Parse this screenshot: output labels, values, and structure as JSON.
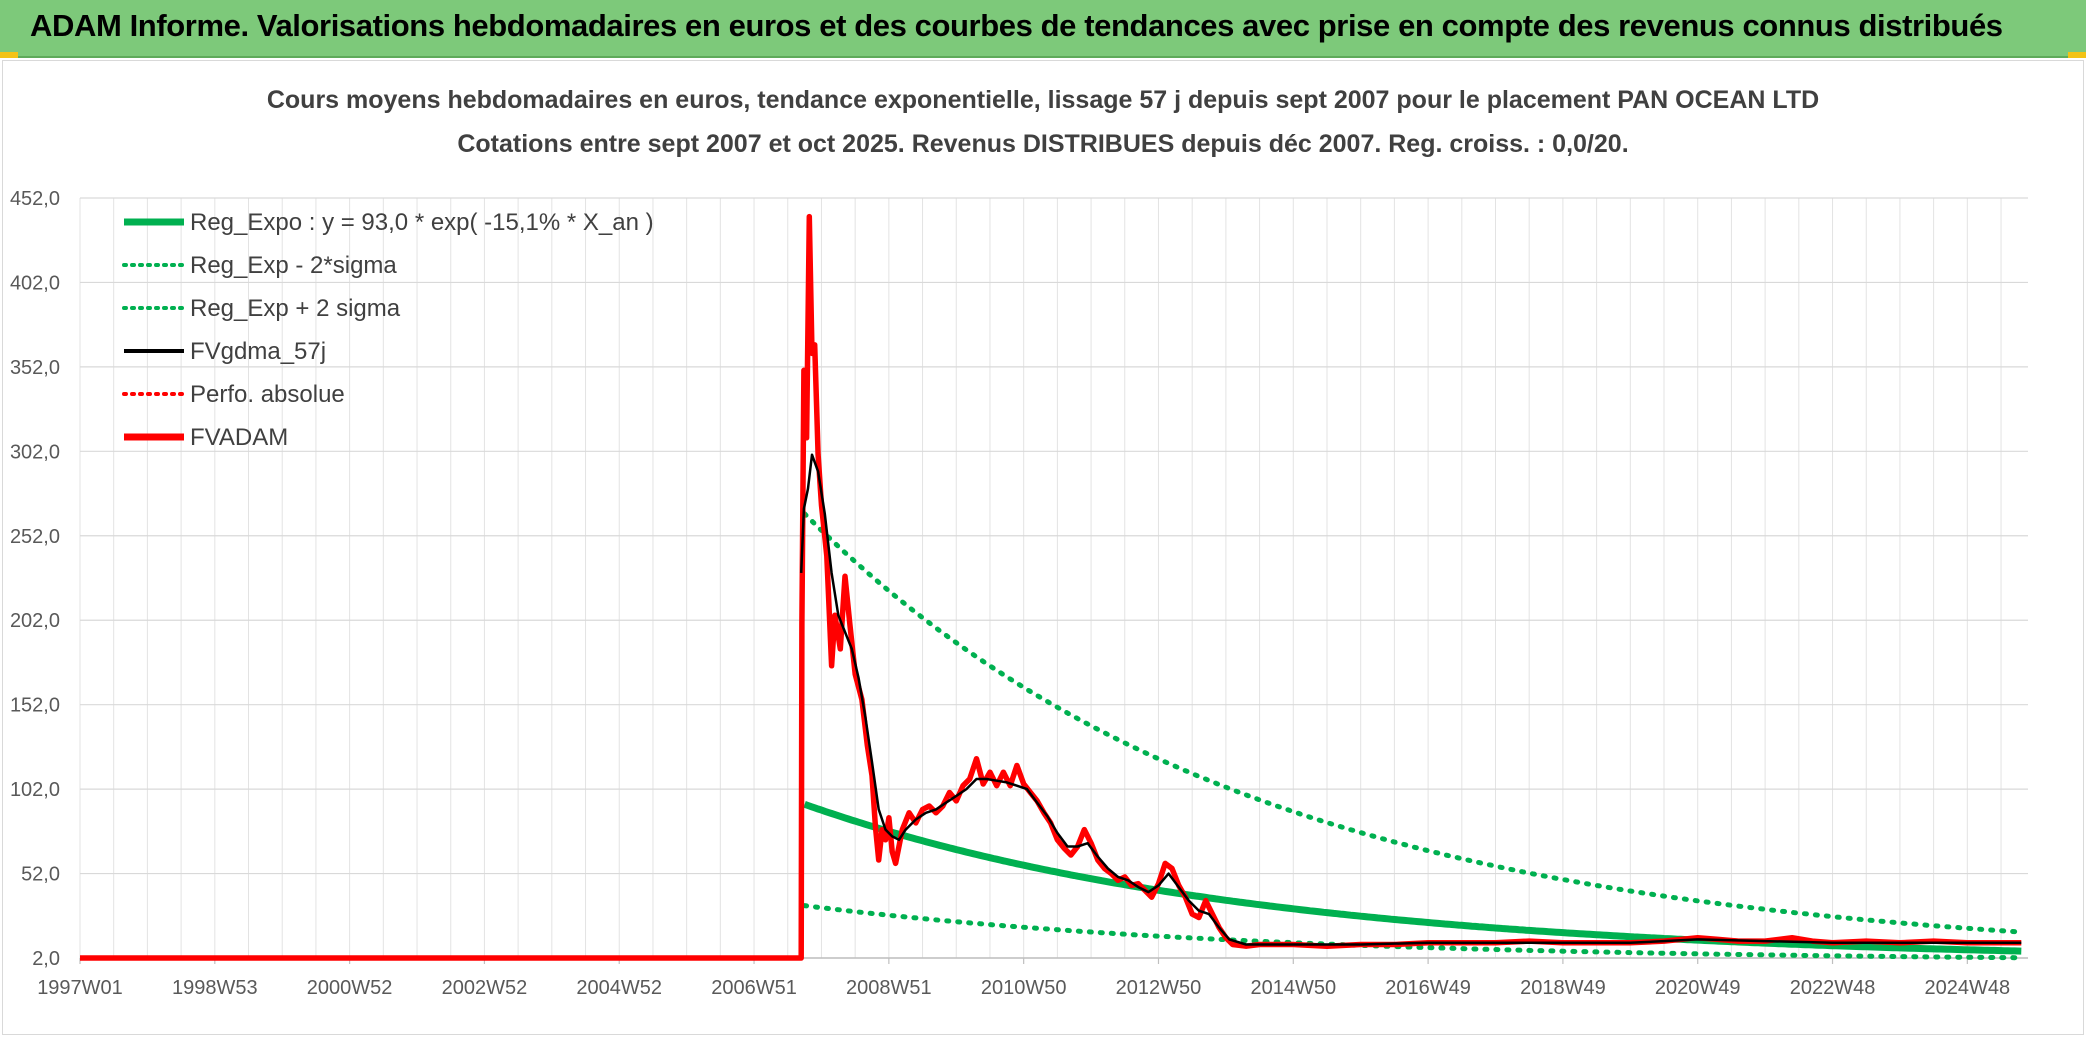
{
  "header": {
    "title": "ADAM Informe. Valorisations hebdomadaires en euros et des courbes de tendances avec prise en compte des revenus connus distribués"
  },
  "colors": {
    "header_bg": "#7dc97a",
    "green": "#00b050",
    "red": "#ff0000",
    "black": "#000000"
  },
  "chart_data": {
    "type": "line",
    "title_line1": "Cours moyens hebdomadaires en euros, tendance exponentielle, lissage 57 j depuis sept 2007 pour le placement PAN OCEAN LTD",
    "title_line2": "Cotations entre sept 2007 et oct 2025. Revenus DISTRIBUES depuis déc 2007. Reg. croiss. : 0,0/20.",
    "x_range": [
      1997.0,
      2025.9
    ],
    "ylim": [
      2.0,
      452.0
    ],
    "y_ticks": [
      "452,0",
      "402,0",
      "352,0",
      "302,0",
      "252,0",
      "202,0",
      "152,0",
      "102,0",
      "52,0",
      "2,0"
    ],
    "y_tick_values": [
      452,
      402,
      352,
      302,
      252,
      202,
      152,
      102,
      52,
      2
    ],
    "x_ticks": [
      "1997W01",
      "1998W53",
      "2000W52",
      "2002W52",
      "2004W52",
      "2006W51",
      "2008W51",
      "2010W50",
      "2012W50",
      "2014W50",
      "2016W49",
      "2018W49",
      "2020W49",
      "2022W48",
      "2024W48"
    ],
    "x_tick_values": [
      1997.0,
      1999.0,
      2001.0,
      2003.0,
      2005.0,
      2007.0,
      2009.0,
      2011.0,
      2013.0,
      2015.0,
      2017.0,
      2019.0,
      2021.0,
      2023.0,
      2025.0
    ],
    "legend": [
      {
        "label": "Reg_Expo : y = 93,0 * exp( -15,1% *  X_an )",
        "color": "#00b050",
        "style": "solid-thick"
      },
      {
        "label": "Reg_Exp - 2*sigma",
        "color": "#00b050",
        "style": "dotted"
      },
      {
        "label": "Reg_Exp + 2 sigma",
        "color": "#00b050",
        "style": "dotted"
      },
      {
        "label": "FVgdma_57j",
        "color": "#000000",
        "style": "solid"
      },
      {
        "label": "Perfo. absolue",
        "color": "#ff0000",
        "style": "dotted"
      },
      {
        "label": "FVADAM",
        "color": "#ff0000",
        "style": "solid-thick"
      }
    ],
    "series": [
      {
        "name": "Reg_Expo",
        "start": 2007.75,
        "end": 2025.8,
        "y0": 93.0,
        "rate": -0.151
      },
      {
        "name": "Reg_Exp - 2*sigma",
        "start": 2007.75,
        "end": 2025.8,
        "y0": 33.0,
        "rate": -0.151
      },
      {
        "name": "Reg_Exp + 2 sigma",
        "start": 2007.75,
        "end": 2025.8,
        "y0": 265.0,
        "rate": -0.151
      },
      {
        "name": "FVADAM",
        "points": [
          [
            1997.0,
            2.0
          ],
          [
            2007.7,
            2.0
          ],
          [
            2007.71,
            200
          ],
          [
            2007.74,
            350
          ],
          [
            2007.78,
            310
          ],
          [
            2007.82,
            441
          ],
          [
            2007.86,
            360
          ],
          [
            2007.9,
            365
          ],
          [
            2007.95,
            300
          ],
          [
            2008.0,
            270
          ],
          [
            2008.08,
            240
          ],
          [
            2008.15,
            175
          ],
          [
            2008.2,
            205
          ],
          [
            2008.28,
            185
          ],
          [
            2008.35,
            228
          ],
          [
            2008.42,
            200
          ],
          [
            2008.5,
            170
          ],
          [
            2008.6,
            155
          ],
          [
            2008.68,
            128
          ],
          [
            2008.75,
            110
          ],
          [
            2008.8,
            80
          ],
          [
            2008.85,
            60
          ],
          [
            2008.9,
            78
          ],
          [
            2008.95,
            72
          ],
          [
            2009.0,
            85
          ],
          [
            2009.05,
            65
          ],
          [
            2009.1,
            58
          ],
          [
            2009.2,
            78
          ],
          [
            2009.3,
            88
          ],
          [
            2009.4,
            82
          ],
          [
            2009.5,
            90
          ],
          [
            2009.6,
            92
          ],
          [
            2009.7,
            88
          ],
          [
            2009.8,
            92
          ],
          [
            2009.9,
            100
          ],
          [
            2010.0,
            95
          ],
          [
            2010.1,
            104
          ],
          [
            2010.2,
            108
          ],
          [
            2010.3,
            120
          ],
          [
            2010.4,
            105
          ],
          [
            2010.5,
            112
          ],
          [
            2010.6,
            104
          ],
          [
            2010.7,
            112
          ],
          [
            2010.8,
            104
          ],
          [
            2010.9,
            116
          ],
          [
            2011.0,
            105
          ],
          [
            2011.1,
            100
          ],
          [
            2011.2,
            95
          ],
          [
            2011.3,
            88
          ],
          [
            2011.4,
            82
          ],
          [
            2011.5,
            72
          ],
          [
            2011.6,
            67
          ],
          [
            2011.7,
            63
          ],
          [
            2011.8,
            68
          ],
          [
            2011.9,
            78
          ],
          [
            2012.0,
            70
          ],
          [
            2012.1,
            60
          ],
          [
            2012.2,
            55
          ],
          [
            2012.3,
            52
          ],
          [
            2012.4,
            48
          ],
          [
            2012.5,
            50
          ],
          [
            2012.6,
            45
          ],
          [
            2012.7,
            46
          ],
          [
            2012.8,
            42
          ],
          [
            2012.9,
            38
          ],
          [
            2013.0,
            46
          ],
          [
            2013.1,
            58
          ],
          [
            2013.2,
            55
          ],
          [
            2013.3,
            45
          ],
          [
            2013.4,
            38
          ],
          [
            2013.5,
            28
          ],
          [
            2013.6,
            26
          ],
          [
            2013.7,
            36
          ],
          [
            2013.8,
            28
          ],
          [
            2013.9,
            20
          ],
          [
            2014.0,
            14
          ],
          [
            2014.1,
            10
          ],
          [
            2014.3,
            9
          ],
          [
            2014.5,
            10
          ],
          [
            2015.0,
            10
          ],
          [
            2015.5,
            9
          ],
          [
            2016.0,
            10
          ],
          [
            2016.5,
            10
          ],
          [
            2017.0,
            11
          ],
          [
            2017.5,
            11
          ],
          [
            2018.0,
            11
          ],
          [
            2018.5,
            12
          ],
          [
            2019.0,
            11
          ],
          [
            2019.5,
            11
          ],
          [
            2020.0,
            11
          ],
          [
            2020.5,
            12
          ],
          [
            2021.0,
            14
          ],
          [
            2021.3,
            13
          ],
          [
            2021.6,
            12
          ],
          [
            2022.0,
            12
          ],
          [
            2022.4,
            14
          ],
          [
            2022.7,
            12
          ],
          [
            2023.0,
            11
          ],
          [
            2023.5,
            12
          ],
          [
            2024.0,
            11
          ],
          [
            2024.5,
            12
          ],
          [
            2025.0,
            11
          ],
          [
            2025.8,
            11
          ]
        ]
      },
      {
        "name": "FVgdma_57j",
        "points": [
          [
            2007.7,
            230
          ],
          [
            2007.74,
            268
          ],
          [
            2007.8,
            280
          ],
          [
            2007.86,
            300
          ],
          [
            2007.95,
            290
          ],
          [
            2008.05,
            265
          ],
          [
            2008.15,
            230
          ],
          [
            2008.25,
            205
          ],
          [
            2008.35,
            195
          ],
          [
            2008.45,
            185
          ],
          [
            2008.55,
            168
          ],
          [
            2008.65,
            145
          ],
          [
            2008.75,
            118
          ],
          [
            2008.85,
            90
          ],
          [
            2008.95,
            78
          ],
          [
            2009.05,
            74
          ],
          [
            2009.15,
            72
          ],
          [
            2009.25,
            78
          ],
          [
            2009.4,
            84
          ],
          [
            2009.55,
            88
          ],
          [
            2009.7,
            90
          ],
          [
            2009.85,
            94
          ],
          [
            2010.0,
            98
          ],
          [
            2010.15,
            102
          ],
          [
            2010.3,
            108
          ],
          [
            2010.45,
            108
          ],
          [
            2010.6,
            107
          ],
          [
            2010.75,
            106
          ],
          [
            2010.9,
            104
          ],
          [
            2011.05,
            102
          ],
          [
            2011.2,
            94
          ],
          [
            2011.35,
            86
          ],
          [
            2011.5,
            76
          ],
          [
            2011.65,
            68
          ],
          [
            2011.8,
            68
          ],
          [
            2011.95,
            70
          ],
          [
            2012.1,
            62
          ],
          [
            2012.25,
            55
          ],
          [
            2012.4,
            50
          ],
          [
            2012.55,
            48
          ],
          [
            2012.7,
            44
          ],
          [
            2012.85,
            41
          ],
          [
            2013.0,
            45
          ],
          [
            2013.15,
            52
          ],
          [
            2013.3,
            44
          ],
          [
            2013.45,
            36
          ],
          [
            2013.6,
            30
          ],
          [
            2013.75,
            28
          ],
          [
            2013.9,
            20
          ],
          [
            2014.05,
            13
          ],
          [
            2014.3,
            10
          ],
          [
            2014.6,
            10
          ],
          [
            2015.0,
            10
          ],
          [
            2016.0,
            10
          ],
          [
            2017.0,
            11
          ],
          [
            2018.0,
            11
          ],
          [
            2019.0,
            11
          ],
          [
            2020.0,
            11
          ],
          [
            2021.0,
            13
          ],
          [
            2022.0,
            12
          ],
          [
            2023.0,
            11
          ],
          [
            2024.0,
            11
          ],
          [
            2025.8,
            11
          ]
        ]
      }
    ]
  }
}
